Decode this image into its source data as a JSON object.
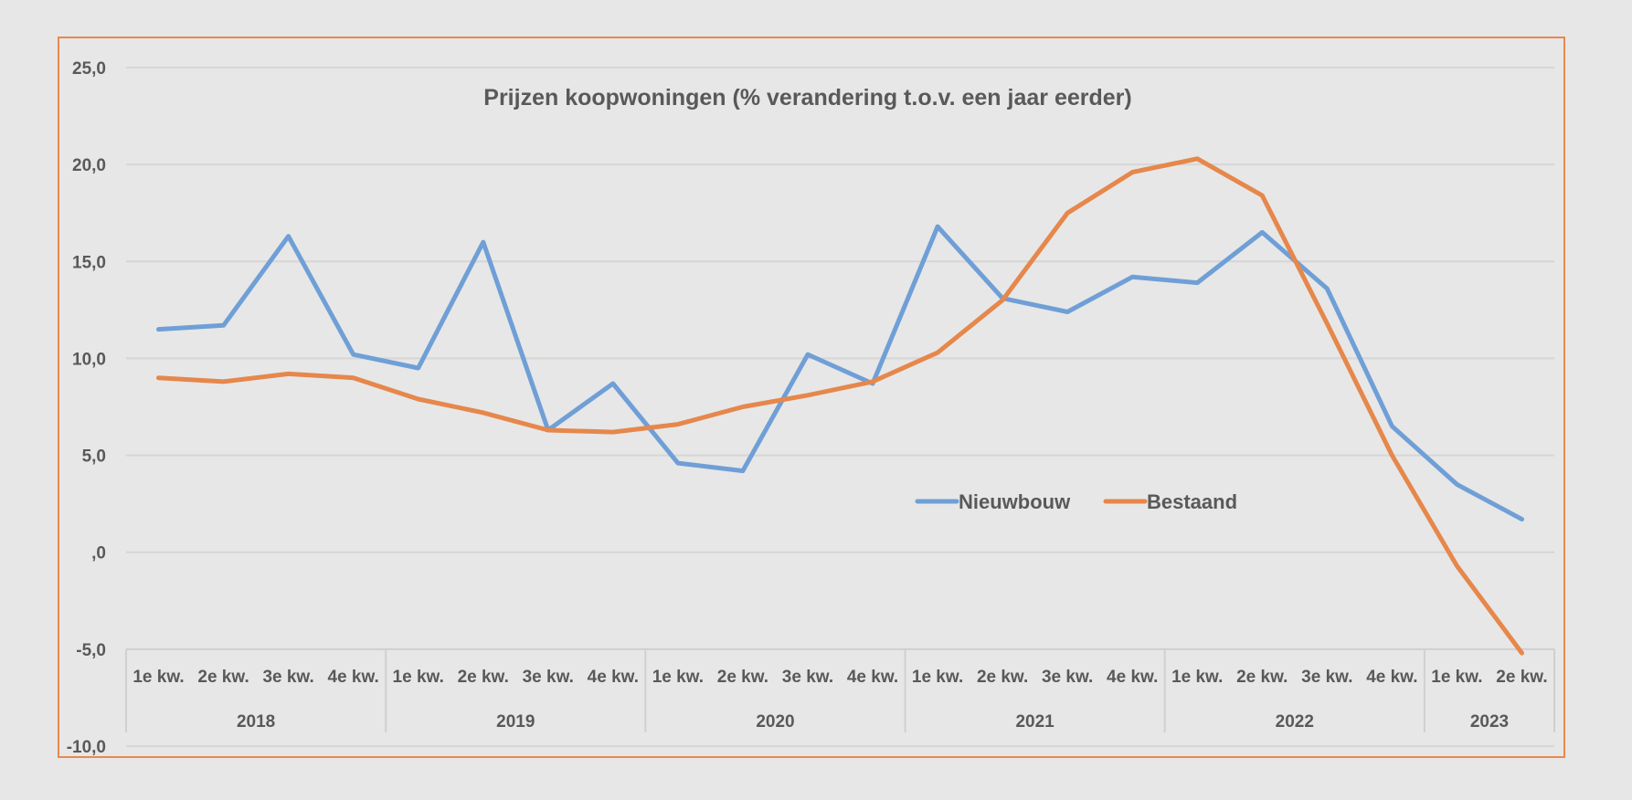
{
  "chart_data": {
    "type": "line",
    "title": "Prijzen koopwoningen (% verandering t.o.v. een jaar eerder)",
    "xlabel": "",
    "ylabel": "",
    "ylim": [
      -10,
      25
    ],
    "yticks": [
      25,
      20,
      15,
      10,
      5,
      0,
      -5,
      -10
    ],
    "ytick_labels": [
      "25,0",
      "20,0",
      "15,0",
      "10,0",
      "5,0",
      ",0",
      "-5,0",
      "-10,0"
    ],
    "grid": true,
    "legend": "center-right",
    "years": [
      {
        "label": "2018",
        "quarters": [
          "1e kw.",
          "2e kw.",
          "3e kw.",
          "4e kw."
        ]
      },
      {
        "label": "2019",
        "quarters": [
          "1e kw.",
          "2e kw.",
          "3e kw.",
          "4e kw."
        ]
      },
      {
        "label": "2020",
        "quarters": [
          "1e kw.",
          "2e kw.",
          "3e kw.",
          "4e kw."
        ]
      },
      {
        "label": "2021",
        "quarters": [
          "1e kw.",
          "2e kw.",
          "3e kw.",
          "4e kw."
        ]
      },
      {
        "label": "2022",
        "quarters": [
          "1e kw.",
          "2e kw.",
          "3e kw.",
          "4e kw."
        ]
      },
      {
        "label": "2023",
        "quarters": [
          "1e kw.",
          "2e kw."
        ]
      }
    ],
    "series": [
      {
        "name": "Nieuwbouw",
        "color": "#6f9fd6",
        "values": [
          11.5,
          11.7,
          16.3,
          10.2,
          9.5,
          16.0,
          6.3,
          8.7,
          4.6,
          4.2,
          10.2,
          8.7,
          16.8,
          13.1,
          12.4,
          14.2,
          13.9,
          16.5,
          13.6,
          6.5,
          3.5,
          1.7
        ]
      },
      {
        "name": "Bestaand",
        "color": "#e6874b",
        "values": [
          9.0,
          8.8,
          9.2,
          9.0,
          7.9,
          7.2,
          6.3,
          6.2,
          6.6,
          7.5,
          8.1,
          8.8,
          10.3,
          13.0,
          17.5,
          19.6,
          20.3,
          18.4,
          11.8,
          5.0,
          -0.7,
          -5.2
        ]
      }
    ]
  }
}
